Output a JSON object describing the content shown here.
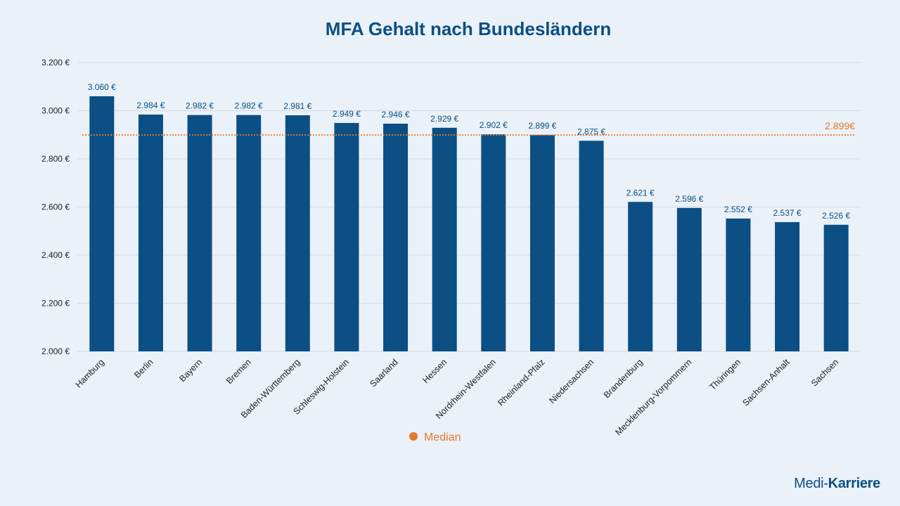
{
  "colors": {
    "bar": "#0b4f84",
    "title": "#0b4f84",
    "median": "#e8792b",
    "grid": "#d3d9e0",
    "background": "#eaf1f8"
  },
  "brand": {
    "part1": "Medi-",
    "part2": "Karriere"
  },
  "chart_data": {
    "type": "bar",
    "title": "MFA Gehalt nach Bundesländern",
    "xlabel": "",
    "ylabel": "",
    "ylim": [
      2000,
      3200
    ],
    "yticks": [
      2000,
      2200,
      2400,
      2600,
      2800,
      3000,
      3200
    ],
    "ytick_labels": [
      "2.000 €",
      "2.200 €",
      "2.400 €",
      "2.600 €",
      "2.800 €",
      "3.000 €",
      "3.200 €"
    ],
    "grid": true,
    "categories": [
      "Hamburg",
      "Berlin",
      "Bayern",
      "Bremen",
      "Baden-Württemberg",
      "Schleswig-Holstein",
      "Saarland",
      "Hessen",
      "Nordrhein-Westfalen",
      "Rheinland-Pfalz",
      "Niedersachsen",
      "Brandenburg",
      "Mecklenburg-Vorpommern",
      "Thüringen",
      "Sachsen-Anhalt",
      "Sachsen"
    ],
    "values": [
      3060,
      2984,
      2982,
      2982,
      2981,
      2949,
      2946,
      2929,
      2902,
      2899,
      2875,
      2621,
      2596,
      2552,
      2537,
      2526
    ],
    "value_labels": [
      "3.060 €",
      "2.984  €",
      "2.982  €",
      "2.982  €",
      "2.981  €",
      "2.949  €",
      "2.946  €",
      "2.929  €",
      "2.902  €",
      "2.899  €",
      "2.875  €",
      "2.621  €",
      "2.596  €",
      "2.552  €",
      "2.537  €",
      "2.526  €"
    ],
    "median": {
      "value": 2899,
      "label": "2.899€",
      "legend": "Median"
    },
    "legend_position": "bottom-center"
  }
}
